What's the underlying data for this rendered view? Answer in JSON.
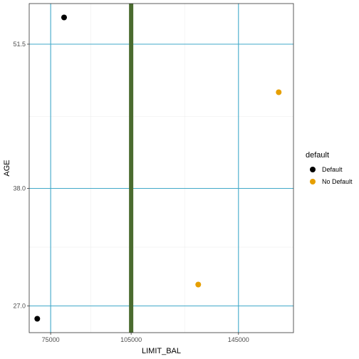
{
  "chart_data": {
    "type": "scatter",
    "xlabel": "LIMIT_BAL",
    "ylabel": "AGE",
    "xlim": [
      67000,
      165500
    ],
    "ylim": [
      24.5,
      55.3
    ],
    "x_ticks": [
      75000,
      105000,
      145000
    ],
    "x_tick_labels": [
      "75000",
      "105000",
      "145000"
    ],
    "y_ticks": [
      27.0,
      38.0,
      51.5
    ],
    "y_tick_labels": [
      "27.0",
      "38.0",
      "51.5"
    ],
    "vline": {
      "x": 105000,
      "color": "#4a6b2f"
    },
    "major_grid_color": "#41a9c9",
    "grid": true,
    "legend": {
      "title": "default",
      "position": "right",
      "entries": [
        {
          "label": "Default",
          "color": "#000000"
        },
        {
          "label": "No Default",
          "color": "#e69f00"
        }
      ]
    },
    "series": [
      {
        "name": "Default",
        "color": "#000000",
        "points": [
          {
            "x": 80000,
            "y": 54.0
          },
          {
            "x": 70000,
            "y": 25.8
          }
        ]
      },
      {
        "name": "No Default",
        "color": "#e69f00",
        "points": [
          {
            "x": 130000,
            "y": 29.0
          },
          {
            "x": 160000,
            "y": 47.0
          }
        ]
      }
    ]
  }
}
